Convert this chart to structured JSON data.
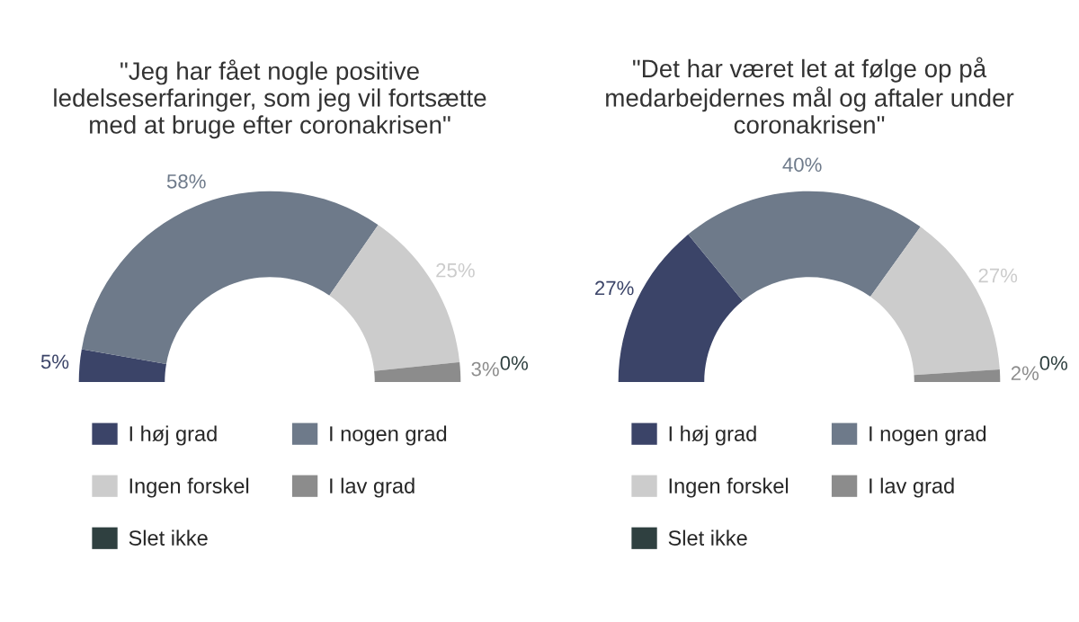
{
  "chart_data": [
    {
      "type": "donut",
      "title": "\"Jeg har fået nogle positive\nledelseserfaringer, som jeg vil fortsætte\nmed at bruge efter coronakrisen\"",
      "categories": [
        "I høj grad",
        "I nogen grad",
        "Ingen forskel",
        "I lav grad",
        "Slet ikke"
      ],
      "values": [
        5,
        58,
        25,
        3,
        0
      ],
      "value_labels": [
        "5%",
        "58%",
        "25%",
        "3%",
        "0%"
      ],
      "colors": [
        "#3b4468",
        "#6e7a8a",
        "#cccccc",
        "#8c8c8c",
        "#2f4040"
      ],
      "legend": "bottom"
    },
    {
      "type": "donut",
      "title": "\"Det har været let at følge op på\nmedarbejdernes mål og aftaler under\ncoronakrisen\"",
      "categories": [
        "I høj grad",
        "I nogen grad",
        "Ingen forskel",
        "I lav grad",
        "Slet ikke"
      ],
      "values": [
        27,
        40,
        27,
        2,
        0
      ],
      "value_labels": [
        "27%",
        "40%",
        "27%",
        "2%",
        "0%"
      ],
      "colors": [
        "#3b4468",
        "#6e7a8a",
        "#cccccc",
        "#8c8c8c",
        "#2f4040"
      ],
      "legend": "bottom"
    }
  ]
}
